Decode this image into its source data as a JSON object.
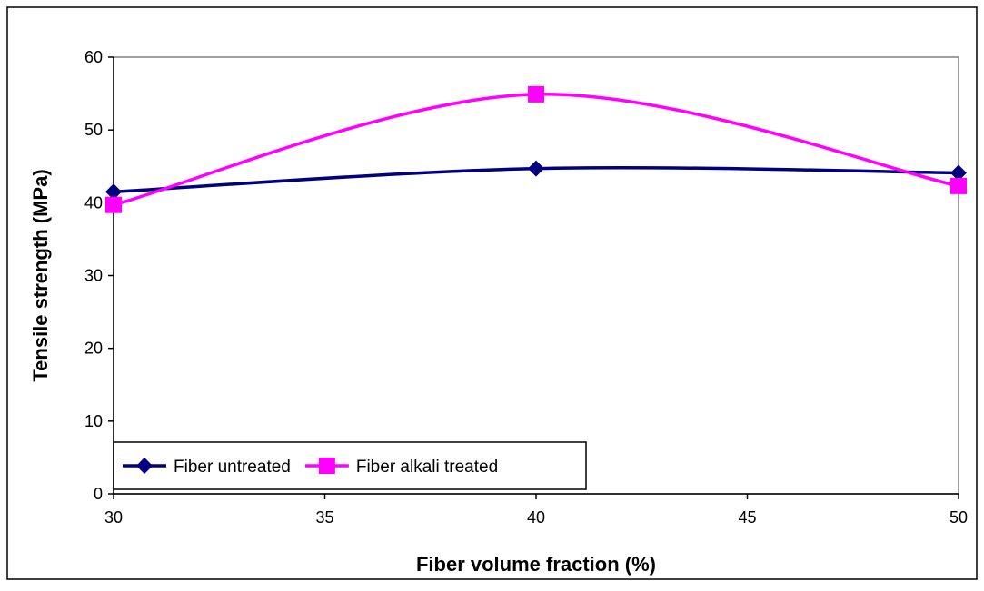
{
  "chart_data": {
    "type": "line",
    "title": "",
    "xlabel": "Fiber volume fraction (%)",
    "ylabel": "Tensile strength (MPa)",
    "xlim": [
      30,
      50
    ],
    "ylim": [
      0,
      60
    ],
    "xticks": [
      30,
      35,
      40,
      45,
      50
    ],
    "yticks": [
      0,
      10,
      20,
      30,
      40,
      50,
      60
    ],
    "grid": false,
    "smooth": true,
    "legend": {
      "placement": "bottom-left",
      "bordered": true
    },
    "x": [
      30,
      40,
      50
    ],
    "series": [
      {
        "name": "Fiber untreated",
        "values": [
          41.5,
          44.7,
          44.1
        ],
        "color": "#000080",
        "marker": "diamond"
      },
      {
        "name": "Fiber alkali treated",
        "values": [
          39.7,
          54.9,
          42.3
        ],
        "color": "#ff00ff",
        "marker": "square"
      }
    ]
  }
}
